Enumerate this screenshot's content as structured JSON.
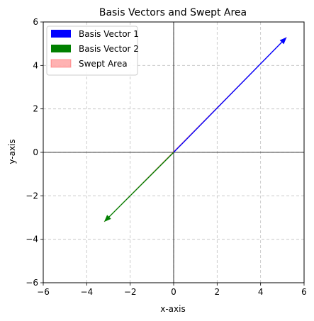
{
  "chart_data": {
    "type": "line",
    "title": "Basis Vectors and Swept Area",
    "xlabel": "x-axis",
    "ylabel": "y-axis",
    "xlim": [
      -6,
      6
    ],
    "ylim": [
      -6,
      6
    ],
    "xticks": [
      -6,
      -4,
      -2,
      0,
      2,
      4,
      6
    ],
    "yticks": [
      -6,
      -4,
      -2,
      0,
      2,
      4,
      6
    ],
    "xtick_labels": [
      "−6",
      "−4",
      "−2",
      "0",
      "2",
      "4",
      "6"
    ],
    "ytick_labels": [
      "−6",
      "−4",
      "−2",
      "0",
      "2",
      "4",
      "6"
    ],
    "grid": true,
    "legend_position": "upper-left",
    "series": [
      {
        "name": "Basis Vector 1",
        "kind": "arrow",
        "from": [
          0,
          0
        ],
        "to": [
          5.2,
          5.3
        ],
        "color": "#0000ff"
      },
      {
        "name": "Basis Vector 2",
        "kind": "arrow",
        "from": [
          0,
          0
        ],
        "to": [
          -3.2,
          -3.2
        ],
        "color": "#008000"
      },
      {
        "name": "Swept Area",
        "kind": "area",
        "polygon": [
          [
            0,
            0
          ],
          [
            5.2,
            5.3
          ],
          [
            -3.2,
            -3.2
          ]
        ],
        "color": "#ff0000",
        "alpha": 0.3
      }
    ]
  }
}
